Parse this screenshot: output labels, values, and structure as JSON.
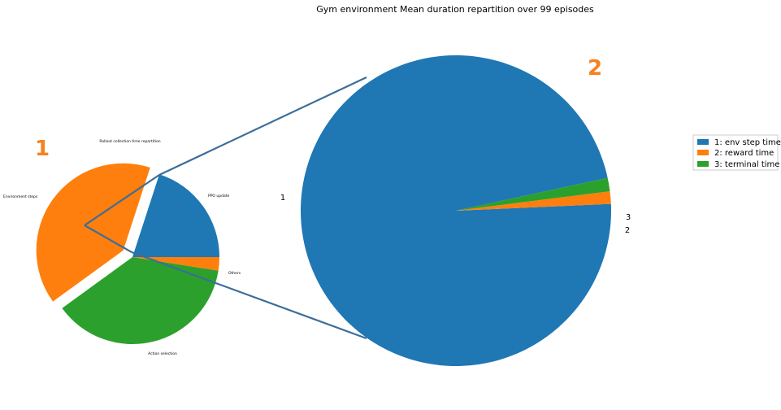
{
  "title": "Gym environment Mean duration repartition over 99 episodes",
  "colors": {
    "blue": "#1f77b4",
    "orange": "#ff7f0e",
    "green": "#2ca02c",
    "connector": "#3b6e99",
    "badge": "#f5821f"
  },
  "chart_data": [
    {
      "type": "pie",
      "title": "Rollout collection time repartition",
      "badge": "1",
      "slices": [
        {
          "label": "PPO update",
          "value": 20,
          "color": "#1f77b4",
          "exploded": false
        },
        {
          "label": "Environment steps",
          "value": 40,
          "color": "#ff7f0e",
          "exploded": true
        },
        {
          "label": "Action selection",
          "value": 37.5,
          "color": "#2ca02c",
          "exploded": false
        },
        {
          "label": "Others",
          "value": 2.5,
          "color": "#ff7f0e",
          "exploded": false
        }
      ]
    },
    {
      "type": "pie",
      "title": "",
      "badge": "2",
      "slices": [
        {
          "label": "1",
          "value": 97.3,
          "color": "#1f77b4"
        },
        {
          "label": "2",
          "value": 1.3,
          "color": "#ff7f0e"
        },
        {
          "label": "3",
          "value": 1.4,
          "color": "#2ca02c"
        }
      ],
      "legend": {
        "position": "right",
        "entries": [
          "1: env step time",
          "2: reward time",
          "3: terminal time"
        ]
      }
    }
  ]
}
